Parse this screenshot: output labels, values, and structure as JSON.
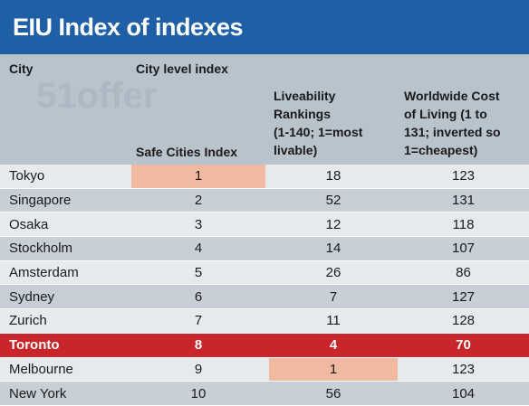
{
  "title": "EIU Index of indexes",
  "headers": {
    "city": "City",
    "group": "City level index",
    "safe": "Safe Cities Index",
    "live_lines": [
      "Liveability",
      "Rankings",
      "(1-140; 1=most",
      "livable)"
    ],
    "cost_lines": [
      "Worldwide Cost",
      "of Living (1 to",
      "131; inverted so",
      "1=cheapest)"
    ]
  },
  "colors": {
    "title_bg": "#1f5fa6",
    "header_bg": "#b9c3cc",
    "row_light": "#e7eaed",
    "row_dark": "#c8cfd6",
    "highlight_row": "#c8262a",
    "best_cell": "#f2b9a2"
  },
  "watermark": "51offer",
  "chart_data": {
    "type": "table",
    "title": "EIU Index of indexes",
    "columns": [
      "City",
      "Safe Cities Index",
      "Liveability Rankings (1-140; 1=most livable)",
      "Worldwide Cost of Living (1 to 131; inverted so 1=cheapest)"
    ],
    "rows": [
      {
        "city": "Tokyo",
        "safe": "1",
        "live": "18",
        "cost": "123"
      },
      {
        "city": "Singapore",
        "safe": "2",
        "live": "52",
        "cost": "131"
      },
      {
        "city": "Osaka",
        "safe": "3",
        "live": "12",
        "cost": "118"
      },
      {
        "city": "Stockholm",
        "safe": "4",
        "live": "14",
        "cost": "107"
      },
      {
        "city": "Amsterdam",
        "safe": "5",
        "live": "26",
        "cost": "86"
      },
      {
        "city": "Sydney",
        "safe": "6",
        "live": "7",
        "cost": "127"
      },
      {
        "city": "Zurich",
        "safe": "7",
        "live": "11",
        "cost": "128"
      },
      {
        "city": "Toronto",
        "safe": "8",
        "live": "4",
        "cost": "70",
        "highlight": true
      },
      {
        "city": "Melbourne",
        "safe": "9",
        "live": "1",
        "cost": "123"
      },
      {
        "city": "New York",
        "safe": "10",
        "live": "56",
        "cost": "104"
      }
    ],
    "highlighted_cells": [
      {
        "city": "Tokyo",
        "column": "safe"
      },
      {
        "city": "Melbourne",
        "column": "live"
      }
    ]
  }
}
